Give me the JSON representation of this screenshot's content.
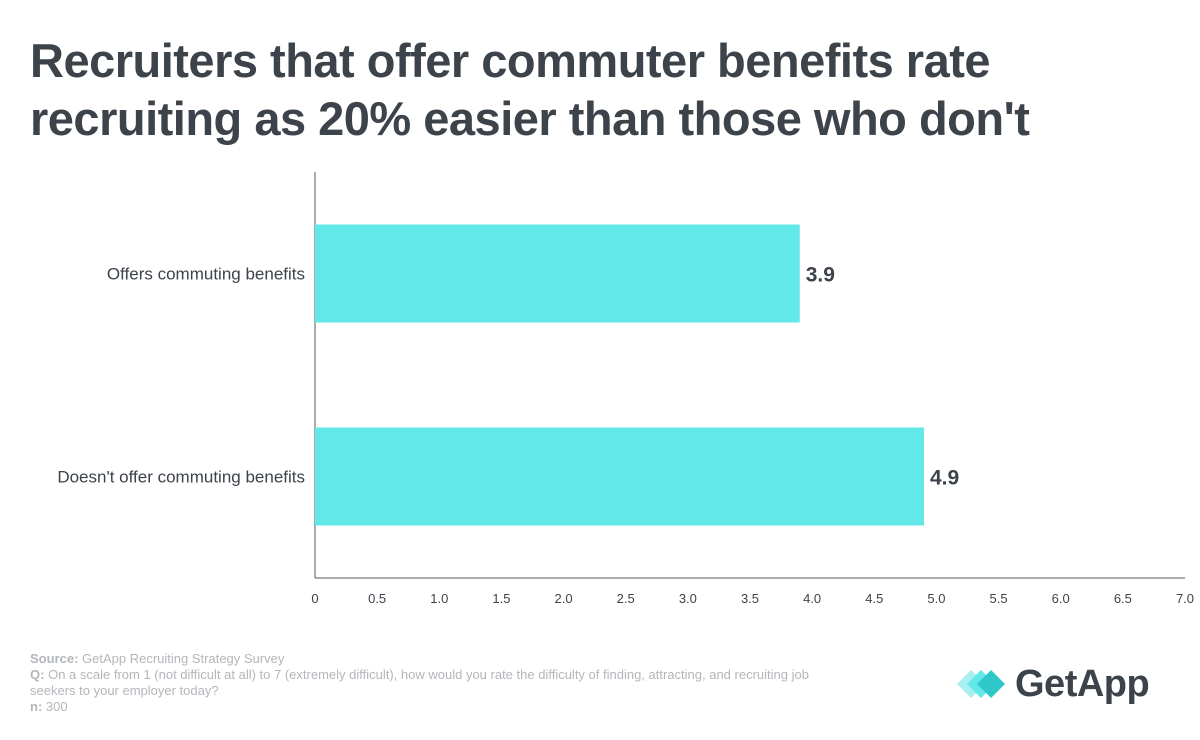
{
  "title_lines": [
    "Recruiters that offer commuter benefits rate",
    "recruiting as 20% easier than those who don't"
  ],
  "colors": {
    "bar": "#62e8e8",
    "text": "#3d434a",
    "axis": "#555a60",
    "muted": "#b3b6ba"
  },
  "chart_data": {
    "type": "bar",
    "orientation": "horizontal",
    "categories": [
      "Offers commuting benefits",
      "Doesn't offer commuting benefits"
    ],
    "values": [
      3.9,
      4.9
    ],
    "value_labels": [
      "3.9",
      "4.9"
    ],
    "xlim": [
      0,
      7
    ],
    "xticks": [
      "0",
      "0.5",
      "1.0",
      "1.5",
      "2.0",
      "2.5",
      "3.0",
      "3.5",
      "4.0",
      "4.5",
      "5.0",
      "5.5",
      "6.0",
      "6.5",
      "7.0"
    ],
    "title": "Recruiters that offer commuter benefits rate recruiting as 20% easier than those who don't",
    "xlabel": "",
    "ylabel": ""
  },
  "footer": {
    "source_label": "Source:",
    "source_text": "GetApp Recruiting Strategy Survey",
    "q_label": "Q:",
    "q_text": "On a scale from 1 (not difficult at all) to 7 (extremely difficult), how would you rate the difficulty of finding, attracting, and recruiting job seekers to your employer today?",
    "n_label": "n:",
    "n_text": "300"
  },
  "logo": {
    "text": "GetApp",
    "icon": "getapp-chevron-icon"
  }
}
